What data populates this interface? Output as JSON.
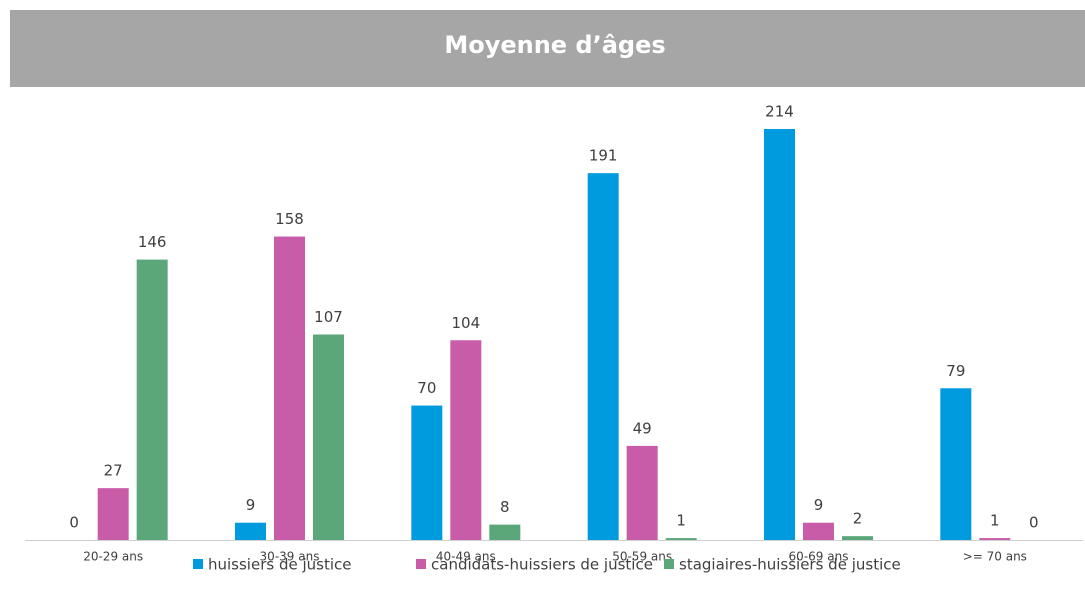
{
  "chart_data": {
    "type": "bar",
    "title": "Moyenne d’âges",
    "categories": [
      "20-29 ans",
      "30-39 ans",
      "40-49 ans",
      "50-59 ans",
      "60-69 ans",
      ">= 70 ans"
    ],
    "series": [
      {
        "name": "huissiers de justice",
        "color": "#009bde",
        "values": [
          0,
          9,
          70,
          191,
          214,
          79
        ]
      },
      {
        "name": "candidats-huissiers de justice",
        "color": "#c85ca8",
        "values": [
          27,
          158,
          104,
          49,
          9,
          1
        ]
      },
      {
        "name": "stagiaires-huissiers de justice",
        "color": "#5ba77a",
        "values": [
          146,
          107,
          8,
          1,
          2,
          0
        ]
      }
    ],
    "legend": "bottom"
  }
}
